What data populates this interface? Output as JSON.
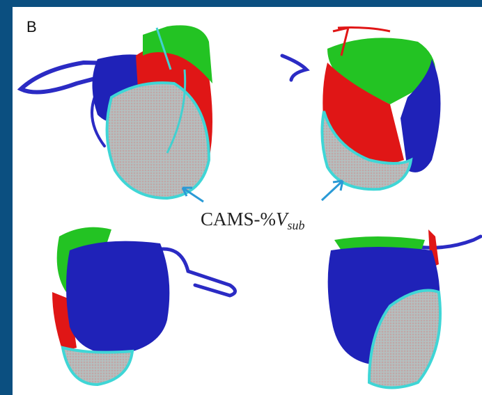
{
  "panel_label": "B",
  "annotation": {
    "text": "CAMS-%",
    "variable": "V",
    "subscript": "sub"
  }
}
